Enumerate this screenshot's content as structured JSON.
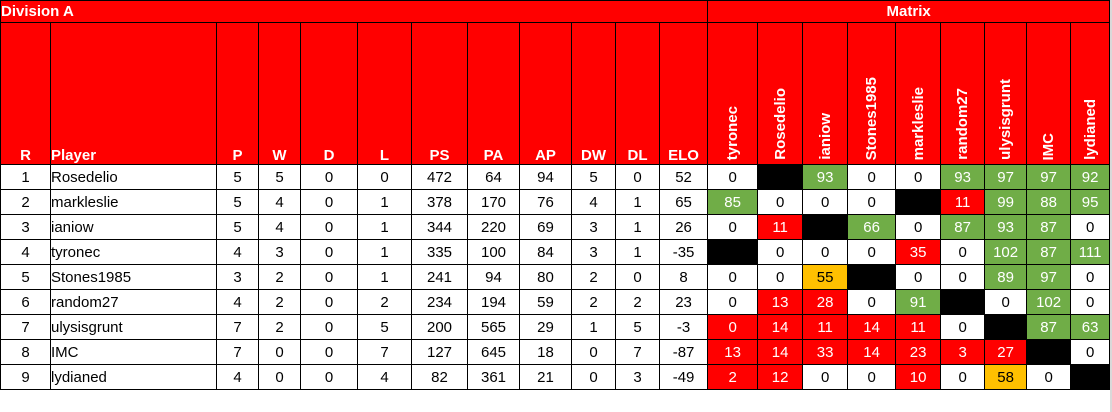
{
  "title_left": "Division A",
  "title_right": "Matrix",
  "headers": [
    "R",
    "Player",
    "P",
    "W",
    "D",
    "L",
    "PS",
    "PA",
    "AP",
    "DW",
    "DL",
    "ELO"
  ],
  "matrix_headers": [
    "tyronec",
    "Rosedelio",
    "ianiow",
    "Stones1985",
    "markleslie",
    "random27",
    "ulysisgrunt",
    "IMC",
    "lydianed"
  ],
  "rows": [
    {
      "r": "1",
      "player": "Rosedelio",
      "p": "5",
      "w": "5",
      "d": "0",
      "l": "0",
      "ps": "472",
      "pa": "64",
      "ap": "94",
      "dw": "5",
      "dl": "0",
      "elo": "52",
      "matrix": [
        {
          "v": "0",
          "c": "white"
        },
        {
          "v": "",
          "c": "black"
        },
        {
          "v": "93",
          "c": "green"
        },
        {
          "v": "0",
          "c": "white"
        },
        {
          "v": "0",
          "c": "white"
        },
        {
          "v": "93",
          "c": "green"
        },
        {
          "v": "97",
          "c": "green"
        },
        {
          "v": "97",
          "c": "green"
        },
        {
          "v": "92",
          "c": "green"
        }
      ]
    },
    {
      "r": "2",
      "player": "markleslie",
      "p": "5",
      "w": "4",
      "d": "0",
      "l": "1",
      "ps": "378",
      "pa": "170",
      "ap": "76",
      "dw": "4",
      "dl": "1",
      "elo": "65",
      "matrix": [
        {
          "v": "85",
          "c": "green"
        },
        {
          "v": "0",
          "c": "white"
        },
        {
          "v": "0",
          "c": "white"
        },
        {
          "v": "0",
          "c": "white"
        },
        {
          "v": "",
          "c": "black"
        },
        {
          "v": "11",
          "c": "red"
        },
        {
          "v": "99",
          "c": "green"
        },
        {
          "v": "88",
          "c": "green"
        },
        {
          "v": "95",
          "c": "green"
        }
      ]
    },
    {
      "r": "3",
      "player": "ianiow",
      "p": "5",
      "w": "4",
      "d": "0",
      "l": "1",
      "ps": "344",
      "pa": "220",
      "ap": "69",
      "dw": "3",
      "dl": "1",
      "elo": "26",
      "matrix": [
        {
          "v": "0",
          "c": "white"
        },
        {
          "v": "11",
          "c": "red"
        },
        {
          "v": "",
          "c": "black"
        },
        {
          "v": "66",
          "c": "green"
        },
        {
          "v": "0",
          "c": "white"
        },
        {
          "v": "87",
          "c": "green"
        },
        {
          "v": "93",
          "c": "green"
        },
        {
          "v": "87",
          "c": "green"
        },
        {
          "v": "0",
          "c": "white"
        }
      ]
    },
    {
      "r": "4",
      "player": "tyronec",
      "p": "4",
      "w": "3",
      "d": "0",
      "l": "1",
      "ps": "335",
      "pa": "100",
      "ap": "84",
      "dw": "3",
      "dl": "1",
      "elo": "-35",
      "matrix": [
        {
          "v": "",
          "c": "black"
        },
        {
          "v": "0",
          "c": "white"
        },
        {
          "v": "0",
          "c": "white"
        },
        {
          "v": "0",
          "c": "white"
        },
        {
          "v": "35",
          "c": "red"
        },
        {
          "v": "0",
          "c": "white"
        },
        {
          "v": "102",
          "c": "green"
        },
        {
          "v": "87",
          "c": "green"
        },
        {
          "v": "111",
          "c": "green"
        }
      ]
    },
    {
      "r": "5",
      "player": "Stones1985",
      "p": "3",
      "w": "2",
      "d": "0",
      "l": "1",
      "ps": "241",
      "pa": "94",
      "ap": "80",
      "dw": "2",
      "dl": "0",
      "elo": "8",
      "matrix": [
        {
          "v": "0",
          "c": "white"
        },
        {
          "v": "0",
          "c": "white"
        },
        {
          "v": "55",
          "c": "yellow"
        },
        {
          "v": "",
          "c": "black"
        },
        {
          "v": "0",
          "c": "white"
        },
        {
          "v": "0",
          "c": "white"
        },
        {
          "v": "89",
          "c": "green"
        },
        {
          "v": "97",
          "c": "green"
        },
        {
          "v": "0",
          "c": "white"
        }
      ]
    },
    {
      "r": "6",
      "player": "random27",
      "p": "4",
      "w": "2",
      "d": "0",
      "l": "2",
      "ps": "234",
      "pa": "194",
      "ap": "59",
      "dw": "2",
      "dl": "2",
      "elo": "23",
      "matrix": [
        {
          "v": "0",
          "c": "white"
        },
        {
          "v": "13",
          "c": "red"
        },
        {
          "v": "28",
          "c": "red"
        },
        {
          "v": "0",
          "c": "white"
        },
        {
          "v": "91",
          "c": "green"
        },
        {
          "v": "",
          "c": "black"
        },
        {
          "v": "0",
          "c": "white"
        },
        {
          "v": "102",
          "c": "green"
        },
        {
          "v": "0",
          "c": "white"
        }
      ]
    },
    {
      "r": "7",
      "player": "ulysisgrunt",
      "p": "7",
      "w": "2",
      "d": "0",
      "l": "5",
      "ps": "200",
      "pa": "565",
      "ap": "29",
      "dw": "1",
      "dl": "5",
      "elo": "-3",
      "matrix": [
        {
          "v": "0",
          "c": "red"
        },
        {
          "v": "14",
          "c": "red"
        },
        {
          "v": "11",
          "c": "red"
        },
        {
          "v": "14",
          "c": "red"
        },
        {
          "v": "11",
          "c": "red"
        },
        {
          "v": "0",
          "c": "white"
        },
        {
          "v": "",
          "c": "black"
        },
        {
          "v": "87",
          "c": "green"
        },
        {
          "v": "63",
          "c": "green"
        }
      ]
    },
    {
      "r": "8",
      "player": "IMC",
      "p": "7",
      "w": "0",
      "d": "0",
      "l": "7",
      "ps": "127",
      "pa": "645",
      "ap": "18",
      "dw": "0",
      "dl": "7",
      "elo": "-87",
      "matrix": [
        {
          "v": "13",
          "c": "red"
        },
        {
          "v": "14",
          "c": "red"
        },
        {
          "v": "33",
          "c": "red"
        },
        {
          "v": "14",
          "c": "red"
        },
        {
          "v": "23",
          "c": "red"
        },
        {
          "v": "3",
          "c": "red"
        },
        {
          "v": "27",
          "c": "red"
        },
        {
          "v": "",
          "c": "black"
        },
        {
          "v": "0",
          "c": "white"
        }
      ]
    },
    {
      "r": "9",
      "player": "lydianed",
      "p": "4",
      "w": "0",
      "d": "0",
      "l": "4",
      "ps": "82",
      "pa": "361",
      "ap": "21",
      "dw": "0",
      "dl": "3",
      "elo": "-49",
      "matrix": [
        {
          "v": "2",
          "c": "red"
        },
        {
          "v": "12",
          "c": "red"
        },
        {
          "v": "0",
          "c": "white"
        },
        {
          "v": "0",
          "c": "white"
        },
        {
          "v": "10",
          "c": "red"
        },
        {
          "v": "0",
          "c": "white"
        },
        {
          "v": "58",
          "c": "yellow"
        },
        {
          "v": "0",
          "c": "white"
        },
        {
          "v": "",
          "c": "black"
        }
      ]
    }
  ]
}
